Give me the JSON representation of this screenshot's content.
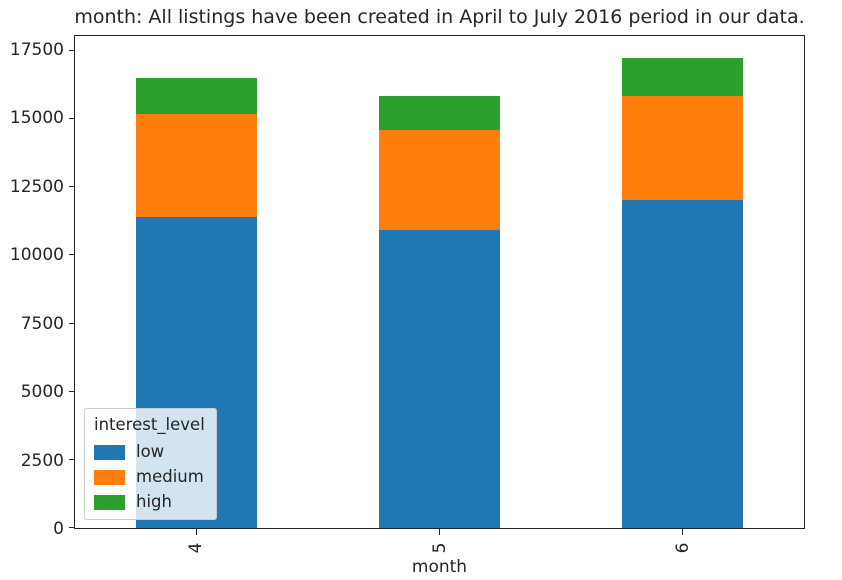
{
  "figure": {
    "title": "month: All listings have been created in April to July 2016 period in our data.",
    "xlabel": "month",
    "background_color": "#ffffff",
    "axis_color": "#262626"
  },
  "legend": {
    "title": "interest_level",
    "location": "lower left"
  },
  "chart_data": {
    "type": "bar",
    "stacked": true,
    "title": "month: All listings have been created in April to July 2016 period in our data.",
    "xlabel": "month",
    "ylabel": "",
    "categories": [
      "4",
      "5",
      "6"
    ],
    "series": [
      {
        "name": "low",
        "color": "#1f77b4",
        "values": [
          11400,
          10950,
          12050
        ]
      },
      {
        "name": "medium",
        "color": "#ff7f0e",
        "values": [
          3800,
          3650,
          3800
        ]
      },
      {
        "name": "high",
        "color": "#2ca02c",
        "values": [
          1300,
          1250,
          1400
        ]
      }
    ],
    "stack_totals": [
      16500,
      15850,
      17250
    ],
    "ylim": [
      0,
      18050
    ],
    "yticks": [
      0,
      2500,
      5000,
      7500,
      10000,
      12500,
      15000,
      17500
    ],
    "xtick_rotation": 90,
    "bar_width_fraction": 0.5,
    "grid": false,
    "legend": {
      "title": "interest_level",
      "entries": [
        "low",
        "medium",
        "high"
      ],
      "location": "lower left"
    }
  }
}
